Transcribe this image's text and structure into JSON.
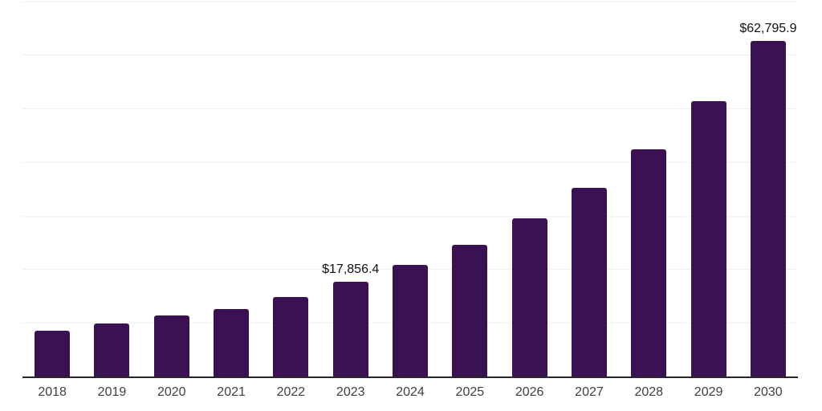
{
  "chart": {
    "background_color": "#ffffff",
    "bar_color": "#3a1152",
    "grid_color": "#f0f0f0",
    "axis_line_color": "#26262b",
    "x_label_color": "#3f3f3f",
    "value_label_color": "#111111"
  },
  "chart_data": {
    "type": "bar",
    "title": "",
    "xlabel": "",
    "ylabel": "",
    "categories": [
      "2018",
      "2019",
      "2020",
      "2021",
      "2022",
      "2023",
      "2024",
      "2025",
      "2026",
      "2027",
      "2028",
      "2029",
      "2030"
    ],
    "values": [
      8620,
      9980,
      11530,
      12670,
      15020,
      17856.4,
      20960,
      24710,
      29590,
      35330,
      42520,
      51440,
      62795.9
    ],
    "value_labels": {
      "2023": "$17,856.4",
      "2030": "$62,795.9"
    },
    "ylim": [
      0,
      70000
    ],
    "grid_step": 10000,
    "grid": true,
    "legend": false,
    "y_tick_labels_visible": false
  }
}
